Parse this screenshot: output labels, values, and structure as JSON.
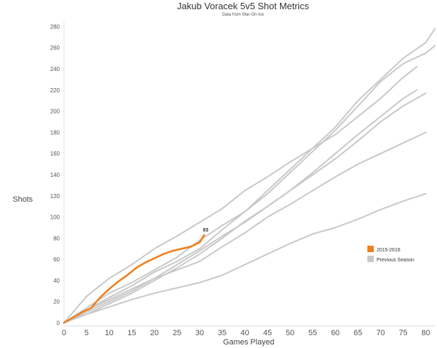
{
  "chart_data": {
    "type": "line",
    "title": "Jakub Voracek 5v5 Shot Metrics",
    "subtitle": "Data from War-On-Ice",
    "xlabel": "Games Played",
    "ylabel": "Shots",
    "xlim": [
      0,
      82
    ],
    "ylim": [
      -3,
      285
    ],
    "xticks": [
      0,
      5,
      10,
      15,
      20,
      25,
      30,
      35,
      40,
      45,
      50,
      55,
      60,
      65,
      70,
      75,
      80
    ],
    "yticks": [
      0,
      20,
      40,
      60,
      80,
      100,
      120,
      140,
      160,
      180,
      200,
      220,
      240,
      260,
      280
    ],
    "legend": [
      {
        "label": "2015-2016",
        "color": "#f07f1d"
      },
      {
        "label": "Previous Season",
        "color": "#c8c8c8"
      }
    ],
    "colors": {
      "current": "#f07f1d",
      "previous": "#c8c8c8"
    },
    "annotation": {
      "x": 31,
      "y": 83,
      "text": "83"
    },
    "series": [
      {
        "name": "2015-2016",
        "x": [
          0,
          2,
          4,
          6,
          8,
          10,
          12,
          14,
          16,
          18,
          20,
          22,
          24,
          26,
          28,
          30,
          31
        ],
        "y": [
          0,
          5,
          10,
          14,
          24,
          32,
          39,
          45,
          52,
          57,
          61,
          65,
          68,
          70,
          72,
          76,
          83
        ]
      },
      {
        "name": "Previous Season A",
        "x": [
          0,
          5,
          10,
          15,
          20,
          25,
          30,
          35,
          40,
          45,
          50,
          55,
          60,
          65,
          70,
          75,
          78
        ],
        "y": [
          0,
          25,
          42,
          55,
          70,
          82,
          95,
          108,
          125,
          138,
          152,
          165,
          178,
          195,
          212,
          232,
          242
        ]
      },
      {
        "name": "Previous Season B",
        "x": [
          0,
          5,
          10,
          15,
          20,
          25,
          30,
          35,
          40,
          45,
          50,
          55,
          60,
          65,
          70,
          75,
          80,
          82
        ],
        "y": [
          0,
          14,
          28,
          38,
          50,
          62,
          78,
          92,
          105,
          122,
          142,
          162,
          182,
          205,
          228,
          245,
          255,
          262
        ]
      },
      {
        "name": "Previous Season C",
        "x": [
          0,
          5,
          10,
          15,
          20,
          25,
          30,
          35,
          40,
          45,
          50,
          55,
          60,
          65,
          70,
          75,
          80,
          82
        ],
        "y": [
          0,
          12,
          24,
          35,
          48,
          58,
          70,
          88,
          105,
          125,
          145,
          165,
          185,
          210,
          230,
          250,
          265,
          278
        ]
      },
      {
        "name": "Previous Season D",
        "x": [
          0,
          5,
          10,
          15,
          20,
          25,
          30,
          35,
          40,
          45,
          50,
          55,
          60,
          65,
          70,
          75,
          78
        ],
        "y": [
          0,
          10,
          20,
          30,
          42,
          55,
          68,
          82,
          95,
          110,
          125,
          142,
          160,
          178,
          195,
          212,
          220
        ]
      },
      {
        "name": "Previous Season E",
        "x": [
          0,
          5,
          10,
          15,
          20,
          25,
          30,
          35,
          40,
          45,
          50,
          55,
          60,
          65,
          70,
          75,
          80
        ],
        "y": [
          0,
          8,
          18,
          28,
          40,
          52,
          65,
          80,
          96,
          110,
          125,
          140,
          155,
          172,
          190,
          205,
          217
        ]
      },
      {
        "name": "Previous Season F",
        "x": [
          0,
          5,
          10,
          15,
          20,
          25,
          30,
          35,
          40,
          45,
          50,
          55,
          60,
          65,
          70,
          75,
          80
        ],
        "y": [
          0,
          12,
          22,
          32,
          42,
          50,
          58,
          72,
          85,
          100,
          112,
          125,
          138,
          150,
          160,
          170,
          180
        ]
      },
      {
        "name": "Previous Season G",
        "x": [
          0,
          5,
          10,
          15,
          20,
          25,
          30,
          35,
          40,
          45,
          50,
          55,
          60,
          65,
          70,
          75,
          80
        ],
        "y": [
          0,
          8,
          15,
          22,
          28,
          33,
          38,
          45,
          55,
          65,
          75,
          84,
          90,
          98,
          107,
          115,
          122
        ]
      }
    ]
  }
}
